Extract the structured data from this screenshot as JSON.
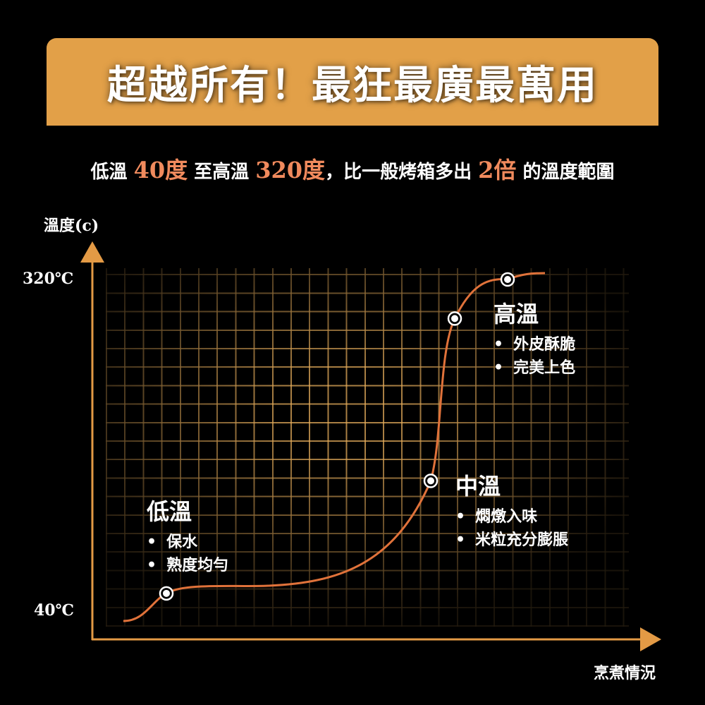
{
  "header": {
    "title": "超越所有！最狂最廣最萬用"
  },
  "subtitle": {
    "p1": "低溫",
    "h1": "40度",
    "p2": "至高溫",
    "h2": "320度",
    "p3": "，比一般烤箱多出",
    "h3": "2倍",
    "p4": "的溫度範圍"
  },
  "colors": {
    "banner": "#e2a048",
    "highlight": "#f08a5d",
    "axis": "#e39a45",
    "curve": "#e0723a",
    "grid": "#e2aa5a"
  },
  "chart_data": {
    "type": "line",
    "ylabel": "溫度(c)",
    "xlabel": "烹煮情況",
    "ylim": [
      40,
      320
    ],
    "y_ticks": [
      "320℃",
      "40℃"
    ],
    "grid": true,
    "points": [
      {
        "x": 1,
        "y": 55
      },
      {
        "x": 2,
        "y": 150
      },
      {
        "x": 3,
        "y": 287
      },
      {
        "x": 4,
        "y": 320
      }
    ],
    "annotations": [
      {
        "title": "低溫",
        "items": [
          "保水",
          "熟度均勻"
        ]
      },
      {
        "title": "中溫",
        "items": [
          "燜燉入味",
          "米粒充分膨脹"
        ]
      },
      {
        "title": "高溫",
        "items": [
          "外皮酥脆",
          "完美上色"
        ]
      }
    ]
  }
}
